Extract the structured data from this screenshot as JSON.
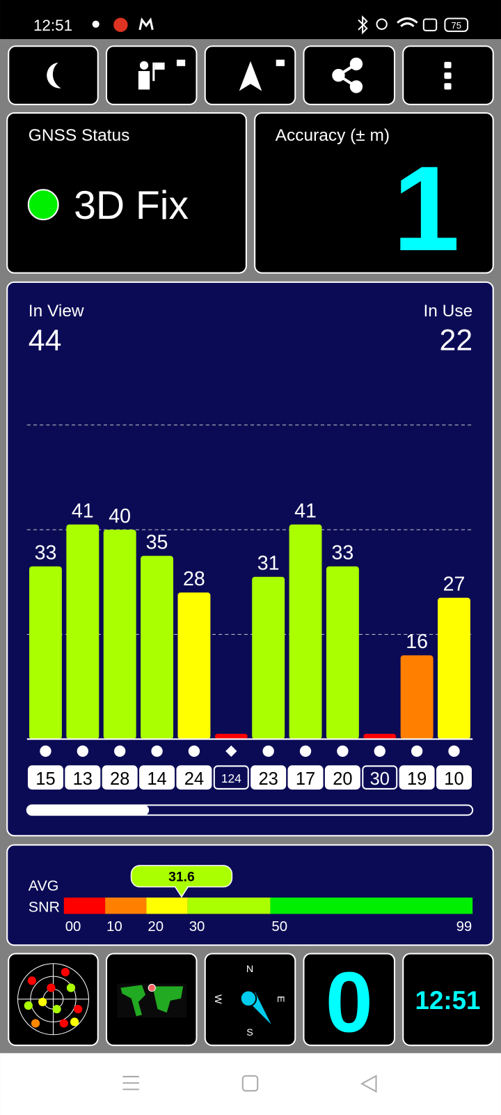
{
  "status_bar": {
    "time": "12:51",
    "battery": "75"
  },
  "gnss_status": {
    "title": "GNSS Status",
    "value": "3D Fix"
  },
  "accuracy": {
    "title": "Accuracy (± m)",
    "value": 1
  },
  "satellites": {
    "in_view": {
      "label": "In View",
      "value": 44
    },
    "in_use": {
      "label": "In Use",
      "value": 22
    },
    "chart": {
      "type": "bar",
      "ylim": [
        0,
        63
      ],
      "yticks": [
        20,
        40,
        60
      ],
      "grid": true,
      "categories": [
        "15",
        "13",
        "28",
        "14",
        "24",
        "124",
        "23",
        "17",
        "20",
        "30",
        "19",
        "10"
      ],
      "values": [
        33,
        41,
        40,
        35,
        28,
        1,
        31,
        41,
        33,
        1,
        16,
        27
      ],
      "colors": [
        "#aaff00",
        "#aaff00",
        "#aaff00",
        "#aaff00",
        "#ffff00",
        "#ff0000",
        "#aaff00",
        "#aaff00",
        "#aaff00",
        "#ff0000",
        "#ff8000",
        "#ffff00"
      ],
      "used": [
        true,
        true,
        true,
        true,
        true,
        false,
        true,
        true,
        true,
        false,
        true,
        true
      ],
      "markers": [
        "circle",
        "circle",
        "circle",
        "circle",
        "circle",
        "diamond",
        "circle",
        "circle",
        "circle",
        "circle",
        "circle",
        "circle"
      ]
    }
  },
  "snr": {
    "label_avg": "AVG",
    "label_snr": "SNR",
    "average": 31.6,
    "xlim": [
      0,
      99
    ],
    "xticks": [
      {
        "value": 0,
        "label": "00"
      },
      10,
      20,
      30,
      50,
      99
    ],
    "band_colors": [
      "#ff0000",
      "#ff8000",
      "#ffff00",
      "#aaff00",
      "#00ee00"
    ]
  },
  "tiles": {
    "compass": {
      "north": "N",
      "east": "E",
      "south": "S",
      "west": "W"
    },
    "counter": 0,
    "clock": "12:51"
  }
}
